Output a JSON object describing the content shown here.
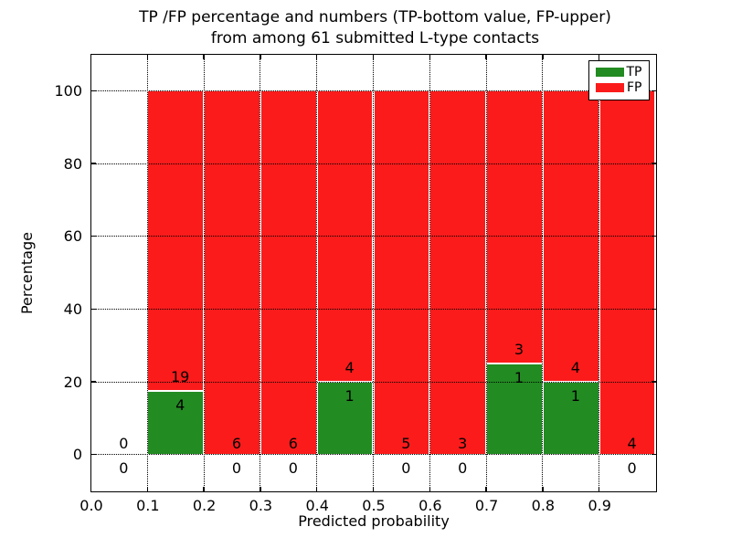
{
  "chart_data": {
    "type": "bar",
    "stacked": true,
    "title": "TP /FP percentage and numbers (TP-bottom value, FP-upper) from among 61 submitted L-type contacts",
    "title_line1": "TP /FP percentage and numbers (TP-bottom value, FP-upper)",
    "title_line2": "from among 61 submitted L-type contacts",
    "xlabel": "Predicted probability",
    "ylabel": "Percentage",
    "xlim": [
      0.0,
      1.0
    ],
    "ylim": [
      -10,
      110
    ],
    "xticks": [
      "0.0",
      "0.1",
      "0.2",
      "0.3",
      "0.4",
      "0.5",
      "0.6",
      "0.7",
      "0.8",
      "0.9"
    ],
    "yticks": [
      "0",
      "20",
      "40",
      "60",
      "80",
      "100"
    ],
    "grid": true,
    "legend_position": "upper right",
    "legend": [
      {
        "label": "TP",
        "color": "#228b22"
      },
      {
        "label": "FP",
        "color": "#fb1b1b"
      }
    ],
    "total_contacts": 61,
    "bins": [
      {
        "x_start": 0.0,
        "x_end": 0.1,
        "tp_count": 0,
        "fp_count": 0,
        "tp_percent": 0
      },
      {
        "x_start": 0.1,
        "x_end": 0.2,
        "tp_count": 4,
        "fp_count": 19,
        "tp_percent": 17.4
      },
      {
        "x_start": 0.2,
        "x_end": 0.3,
        "tp_count": 0,
        "fp_count": 6,
        "tp_percent": 0
      },
      {
        "x_start": 0.3,
        "x_end": 0.4,
        "tp_count": 0,
        "fp_count": 6,
        "tp_percent": 0
      },
      {
        "x_start": 0.4,
        "x_end": 0.5,
        "tp_count": 1,
        "fp_count": 4,
        "tp_percent": 20
      },
      {
        "x_start": 0.5,
        "x_end": 0.6,
        "tp_count": 0,
        "fp_count": 5,
        "tp_percent": 0
      },
      {
        "x_start": 0.6,
        "x_end": 0.7,
        "tp_count": 0,
        "fp_count": 3,
        "tp_percent": 0
      },
      {
        "x_start": 0.7,
        "x_end": 0.8,
        "tp_count": 1,
        "fp_count": 3,
        "tp_percent": 25
      },
      {
        "x_start": 0.8,
        "x_end": 0.9,
        "tp_count": 1,
        "fp_count": 4,
        "tp_percent": 20
      },
      {
        "x_start": 0.9,
        "x_end": 1.0,
        "tp_count": 0,
        "fp_count": 4,
        "tp_percent": 0
      }
    ]
  }
}
